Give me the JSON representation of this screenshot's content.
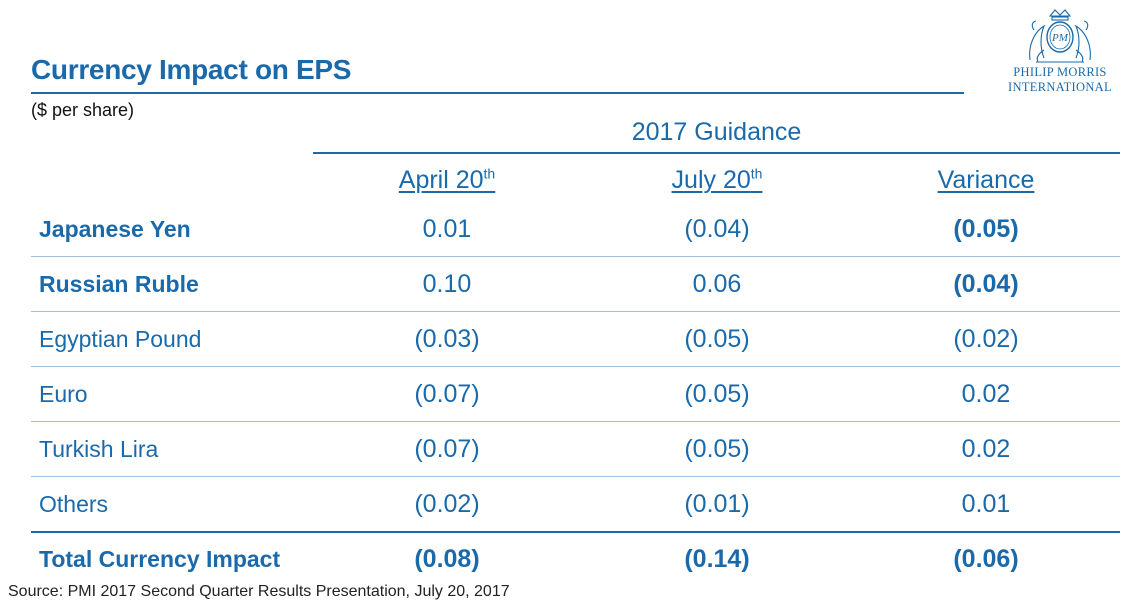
{
  "header": {
    "title": "Currency Impact on EPS",
    "subtitle": "($ per share)"
  },
  "logo": {
    "icon": "pmi-crest-icon",
    "line1": "PHILIP MORRIS",
    "line2": "INTERNATIONAL",
    "monogram": "PM",
    "color": "#1a6aab"
  },
  "table": {
    "group_header": "2017 Guidance",
    "columns": [
      {
        "label": "April 20",
        "sup": "th"
      },
      {
        "label": "July 20",
        "sup": "th"
      },
      {
        "label": "Variance",
        "sup": ""
      }
    ],
    "rows": [
      {
        "label": "Japanese Yen",
        "bold_label": true,
        "bold_variance": true,
        "april": "0.01",
        "july": "(0.04)",
        "variance": "(0.05)"
      },
      {
        "label": "Russian Ruble",
        "bold_label": true,
        "bold_variance": true,
        "april": "0.10",
        "july": "0.06",
        "variance": "(0.04)"
      },
      {
        "label": "Egyptian Pound",
        "bold_label": false,
        "bold_variance": false,
        "april": "(0.03)",
        "july": "(0.05)",
        "variance": "(0.02)"
      },
      {
        "label": "Euro",
        "bold_label": false,
        "bold_variance": false,
        "april": "(0.07)",
        "july": "(0.05)",
        "variance": "0.02"
      },
      {
        "label": "Turkish Lira",
        "bold_label": false,
        "bold_variance": false,
        "april": "(0.07)",
        "july": "(0.05)",
        "variance": "0.02"
      },
      {
        "label": "Others",
        "bold_label": false,
        "bold_variance": false,
        "april": "(0.02)",
        "july": "(0.01)",
        "variance": "0.01"
      }
    ],
    "total": {
      "label": "Total Currency Impact",
      "april": "(0.08)",
      "july": "(0.14)",
      "variance": "(0.06)"
    }
  },
  "footer": {
    "source": "Source: PMI 2017 Second Quarter Results Presentation, July 20, 2017"
  },
  "colors": {
    "accent": "#1a6aab",
    "row_rule": "#9fc0dd"
  }
}
